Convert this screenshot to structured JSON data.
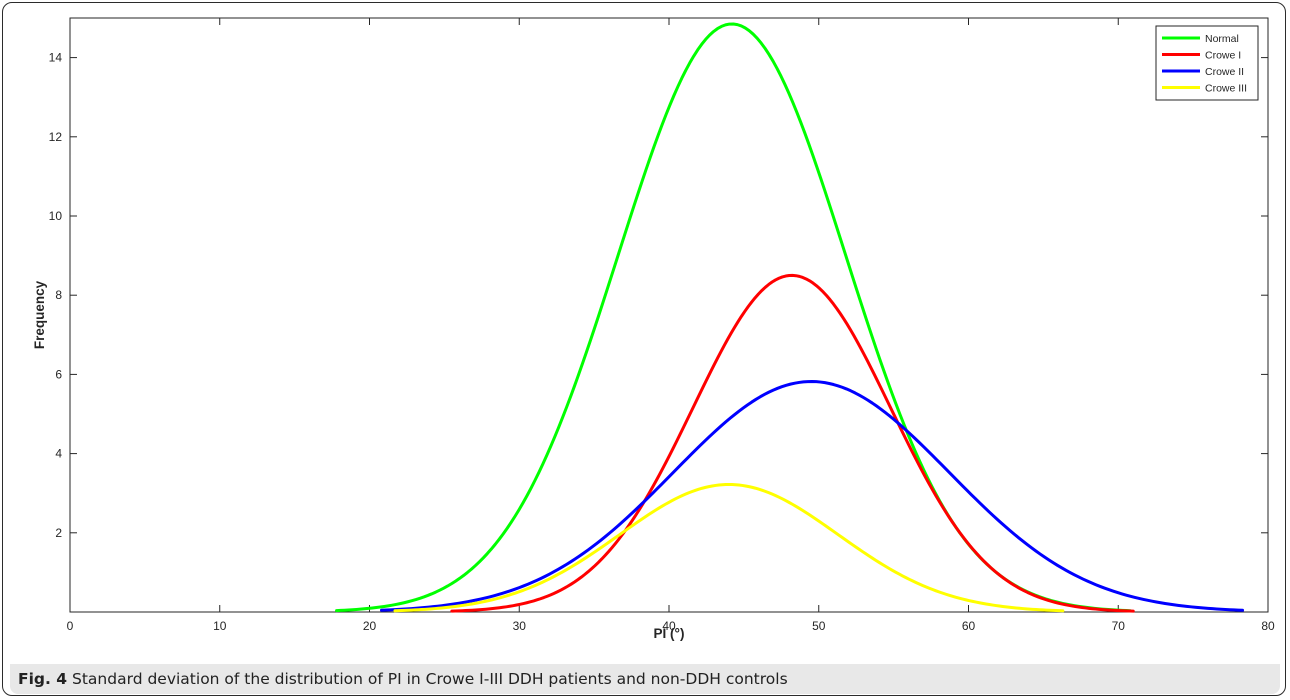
{
  "caption": {
    "label": "Fig. 4",
    "text": "Standard deviation of the distribution of PI in Crowe I-III DDH patients and non-DDH controls"
  },
  "chart_data": {
    "type": "line",
    "title": "",
    "xlabel": "PI (°)",
    "ylabel": "Frequency",
    "xlim": [
      0,
      80
    ],
    "ylim": [
      0,
      15
    ],
    "xticks": [
      0,
      10,
      20,
      30,
      40,
      50,
      60,
      70,
      80
    ],
    "yticks": [
      2,
      4,
      6,
      8,
      10,
      12,
      14
    ],
    "grid": false,
    "legend_position": "top-right",
    "series": [
      {
        "name": "Normal",
        "color": "#00ff00",
        "peak": 14.85,
        "mean": 44.2,
        "sd": 7.6,
        "x_range": [
          17.8,
          70.8
        ]
      },
      {
        "name": "Crowe I",
        "color": "#ff0000",
        "peak": 8.5,
        "mean": 48.2,
        "sd": 6.6,
        "x_range": [
          25.5,
          71.0
        ]
      },
      {
        "name": "Crowe II",
        "color": "#0000ff",
        "peak": 5.82,
        "mean": 49.5,
        "sd": 9.2,
        "x_range": [
          20.8,
          78.3
        ]
      },
      {
        "name": "Crowe III",
        "color": "#ffff00",
        "peak": 3.22,
        "mean": 44.0,
        "sd": 7.3,
        "x_range": [
          21.7,
          66.3
        ]
      }
    ]
  }
}
